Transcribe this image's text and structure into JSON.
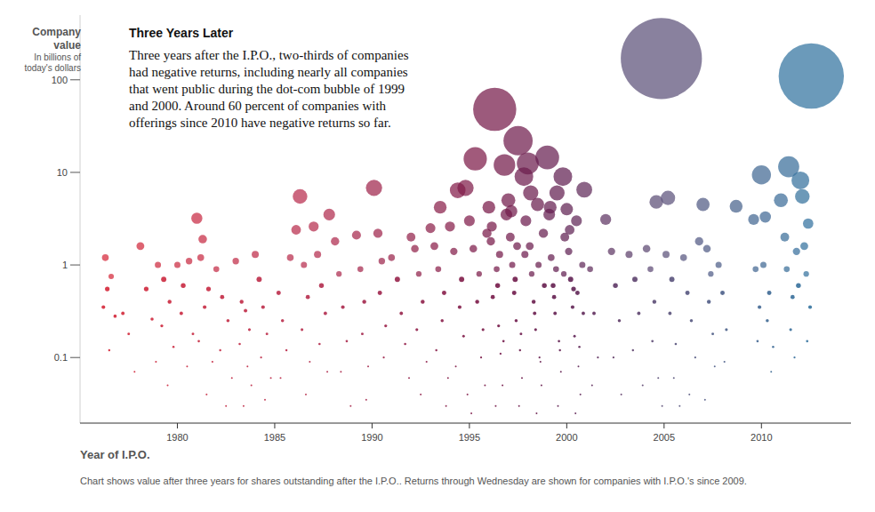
{
  "chart_data": {
    "type": "scatter",
    "title": "Three Years Later",
    "subtitle": [
      "Three years after the I.P.O., two-thirds of companies",
      "had negative returns, including nearly all companies",
      "that went public during the dot-com bubble of 1999",
      "and 2000. Around 60 percent of companies with",
      "offerings since 2010 have negative returns so far."
    ],
    "ylabel": [
      "Company",
      "value"
    ],
    "ylabel_note": [
      "In billions of",
      "today's dollars"
    ],
    "xlabel": "Year of I.P.O.",
    "caption": "Chart shows value after three years for shares outstanding after the I.P.O.. Returns through Wednesday are shown for companies with I.P.O.'s since 2009.",
    "log": "y",
    "grid": false,
    "xlim": [
      1975,
      2014.6
    ],
    "xticks": [
      1980,
      1985,
      1990,
      1995,
      2000,
      2005,
      2010
    ],
    "ylim": [
      0.02,
      500
    ],
    "yticks": [
      0.1,
      1,
      10,
      100
    ],
    "x": [
      1976.3,
      1976.6,
      1976.4,
      1976.2,
      1976.8,
      1976.5,
      1977.2,
      1977.5,
      1977.8,
      1978.1,
      1978.4,
      1978.7,
      1978.9,
      1979.0,
      1979.3,
      1979.6,
      1979.2,
      1979.8,
      1979.5,
      1980.0,
      1980.3,
      1980.6,
      1980.2,
      1980.8,
      1980.5,
      1981.0,
      1981.3,
      1981.2,
      1981.6,
      1981.4,
      1981.1,
      1981.8,
      1981.5,
      1982.0,
      1982.3,
      1982.6,
      1982.2,
      1982.8,
      1982.5,
      1983.0,
      1983.3,
      1983.5,
      1983.7,
      1983.2,
      1983.6,
      1983.8,
      1983.4,
      1984.0,
      1984.2,
      1984.4,
      1984.6,
      1984.3,
      1984.8,
      1984.5,
      1985.2,
      1985.4,
      1985.6,
      1985.3,
      1985.8,
      1986.1,
      1986.3,
      1986.5,
      1986.7,
      1986.4,
      1986.8,
      1986.6,
      1987.0,
      1987.2,
      1987.4,
      1987.6,
      1987.3,
      1987.8,
      1987.7,
      1988.1,
      1988.3,
      1988.5,
      1988.7,
      1988.4,
      1988.9,
      1989.2,
      1989.4,
      1989.6,
      1989.5,
      1989.8,
      1989.7,
      1990.1,
      1990.3,
      1990.5,
      1990.4,
      1990.7,
      1990.6,
      1991.0,
      1991.3,
      1991.5,
      1991.7,
      1991.9,
      1992.0,
      1992.2,
      1992.4,
      1992.6,
      1992.3,
      1992.8,
      1992.5,
      1993.0,
      1993.2,
      1993.5,
      1993.4,
      1993.7,
      1993.6,
      1993.3,
      1993.9,
      1993.8,
      1994.0,
      1994.2,
      1994.4,
      1994.6,
      1994.8,
      1994.5,
      1994.7,
      1994.3,
      1994.9,
      1995.0,
      1995.2,
      1995.3,
      1995.5,
      1995.4,
      1995.7,
      1995.6,
      1995.8,
      1995.1,
      1995.9,
      1996.0,
      1996.1,
      1996.3,
      1996.4,
      1996.2,
      1996.5,
      1996.6,
      1996.7,
      1996.8,
      1996.9,
      1996.35,
      1997.0,
      1997.1,
      1997.2,
      1997.3,
      1997.4,
      1997.5,
      1997.6,
      1997.7,
      1997.8,
      1997.9,
      1997.55,
      1998.0,
      1998.1,
      1998.2,
      1998.3,
      1998.4,
      1998.5,
      1998.6,
      1998.7,
      1998.8,
      1998.45,
      1999.0,
      1999.1,
      1999.2,
      1999.3,
      1999.4,
      1999.5,
      1999.6,
      1999.7,
      1999.8,
      1999.9,
      1999.55,
      2000.0,
      2000.1,
      2000.2,
      2000.3,
      2000.4,
      2000.5,
      2000.6,
      2000.7,
      2000.9,
      2000.8,
      2000.45,
      1996.15,
      1996.45,
      1996.75,
      1997.15,
      1997.35,
      1997.65,
      1997.85,
      1998.15,
      1998.35,
      1998.65,
      1998.85,
      1999.15,
      1999.35,
      1999.65,
      1999.85,
      2000.15,
      2000.35,
      2000.65,
      2000.85,
      1996.55,
      1997.45,
      1998.55,
      1999.45,
      2000.55,
      2001.2,
      2001.4,
      2001.6,
      2001.3,
      2002.0,
      2002.3,
      2002.5,
      2002.7,
      2002.4,
      2002.8,
      2003.2,
      2003.5,
      2003.7,
      2003.4,
      2003.9,
      2004.1,
      2004.3,
      2004.6,
      2004.86,
      2004.5,
      2004.4,
      2004.7,
      2004.9,
      2005.2,
      2005.1,
      2005.4,
      2005.3,
      2005.6,
      2005.5,
      2005.8,
      2006.0,
      2006.2,
      2006.4,
      2006.6,
      2006.3,
      2006.8,
      2007.0,
      2007.2,
      2007.4,
      2007.3,
      2007.5,
      2007.6,
      2007.1,
      2007.8,
      2008.0,
      2008.2,
      2008.1,
      2008.7,
      2009.6,
      2009.7,
      2009.9,
      2009.8,
      2010.0,
      2010.2,
      2010.1,
      2010.4,
      2010.3,
      2010.6,
      2010.5,
      2011.0,
      2011.2,
      2011.4,
      2011.3,
      2011.6,
      2011.5,
      2011.7,
      2011.8,
      2012.0,
      2012.1,
      2012.2,
      2012.3,
      2012.4,
      2012.5,
      2012.56,
      2012.35,
      2011.9
    ],
    "values": [
      1.2,
      0.75,
      0.55,
      0.35,
      0.28,
      0.12,
      0.3,
      0.18,
      0.07,
      1.6,
      0.55,
      0.26,
      0.09,
      1.0,
      0.7,
      0.4,
      0.22,
      0.13,
      0.05,
      1.0,
      0.6,
      1.1,
      0.3,
      0.18,
      0.08,
      3.2,
      1.9,
      1.2,
      0.55,
      0.35,
      0.15,
      0.09,
      0.04,
      0.9,
      0.45,
      0.25,
      0.12,
      0.06,
      0.03,
      1.1,
      0.4,
      0.32,
      0.2,
      0.14,
      0.08,
      0.05,
      0.03,
      1.3,
      0.7,
      0.35,
      0.18,
      0.1,
      0.06,
      0.035,
      0.5,
      0.25,
      0.12,
      0.06,
      1.2,
      2.4,
      5.5,
      1.0,
      0.45,
      0.2,
      0.09,
      0.04,
      2.6,
      1.3,
      0.6,
      0.3,
      0.14,
      3.5,
      0.07,
      1.8,
      0.8,
      0.35,
      0.15,
      0.07,
      0.03,
      2.1,
      0.9,
      0.4,
      0.18,
      0.08,
      0.035,
      6.8,
      2.2,
      1.1,
      0.5,
      0.22,
      0.1,
      1.2,
      0.7,
      0.3,
      0.14,
      0.06,
      2.0,
      1.5,
      0.8,
      0.4,
      0.2,
      0.09,
      0.04,
      2.5,
      1.6,
      4.2,
      0.9,
      0.5,
      0.25,
      0.12,
      0.06,
      0.03,
      2.6,
      1.4,
      6.4,
      0.7,
      6.8,
      0.35,
      0.17,
      0.08,
      0.04,
      3.0,
      1.5,
      14,
      0.8,
      0.4,
      0.2,
      0.1,
      0.05,
      0.025,
      2.2,
      4.2,
      1.8,
      48,
      0.9,
      0.45,
      0.22,
      0.11,
      0.05,
      12,
      3.5,
      0.03,
      5.0,
      2.0,
      1.0,
      0.5,
      0.25,
      22,
      0.12,
      0.06,
      9,
      3.0,
      0.03,
      12.5,
      1.6,
      0.8,
      0.4,
      0.2,
      4.5,
      0.1,
      0.05,
      2.2,
      0.025,
      14.5,
      3.5,
      1.2,
      0.6,
      0.3,
      6.0,
      0.15,
      0.07,
      9,
      2.0,
      0.03,
      4.0,
      1.4,
      0.7,
      0.35,
      0.17,
      3.0,
      0.08,
      0.04,
      6.5,
      1.0,
      0.025,
      2.6,
      0.6,
      0.15,
      3.8,
      0.7,
      0.18,
      1.3,
      6.0,
      0.3,
      0.09,
      0.6,
      4.2,
      0.45,
      0.12,
      0.8,
      2.4,
      0.55,
      0.13,
      0.3,
      1.3,
      1.6,
      1.0,
      0.9,
      0.5,
      0.9,
      0.3,
      0.1,
      0.05,
      3.1,
      1.4,
      0.6,
      0.25,
      0.1,
      0.04,
      1.3,
      0.7,
      0.3,
      0.12,
      0.05,
      1.5,
      0.9,
      4.8,
      170,
      0.4,
      0.15,
      0.06,
      0.03,
      5.3,
      1.3,
      0.7,
      0.3,
      0.14,
      0.06,
      0.03,
      1.2,
      0.5,
      0.25,
      0.1,
      0.04,
      1.8,
      4.5,
      1.5,
      0.8,
      0.4,
      0.18,
      0.08,
      0.035,
      1.0,
      0.5,
      0.2,
      0.09,
      4.3,
      3.1,
      0.9,
      0.35,
      0.15,
      9.4,
      3.3,
      1.0,
      0.5,
      0.25,
      0.13,
      0.07,
      5.0,
      2.0,
      11.5,
      0.9,
      0.45,
      0.2,
      0.1,
      1.4,
      8.2,
      5.5,
      1.6,
      0.8,
      2.8,
      0.35,
      110,
      0.15,
      0.6
    ]
  }
}
